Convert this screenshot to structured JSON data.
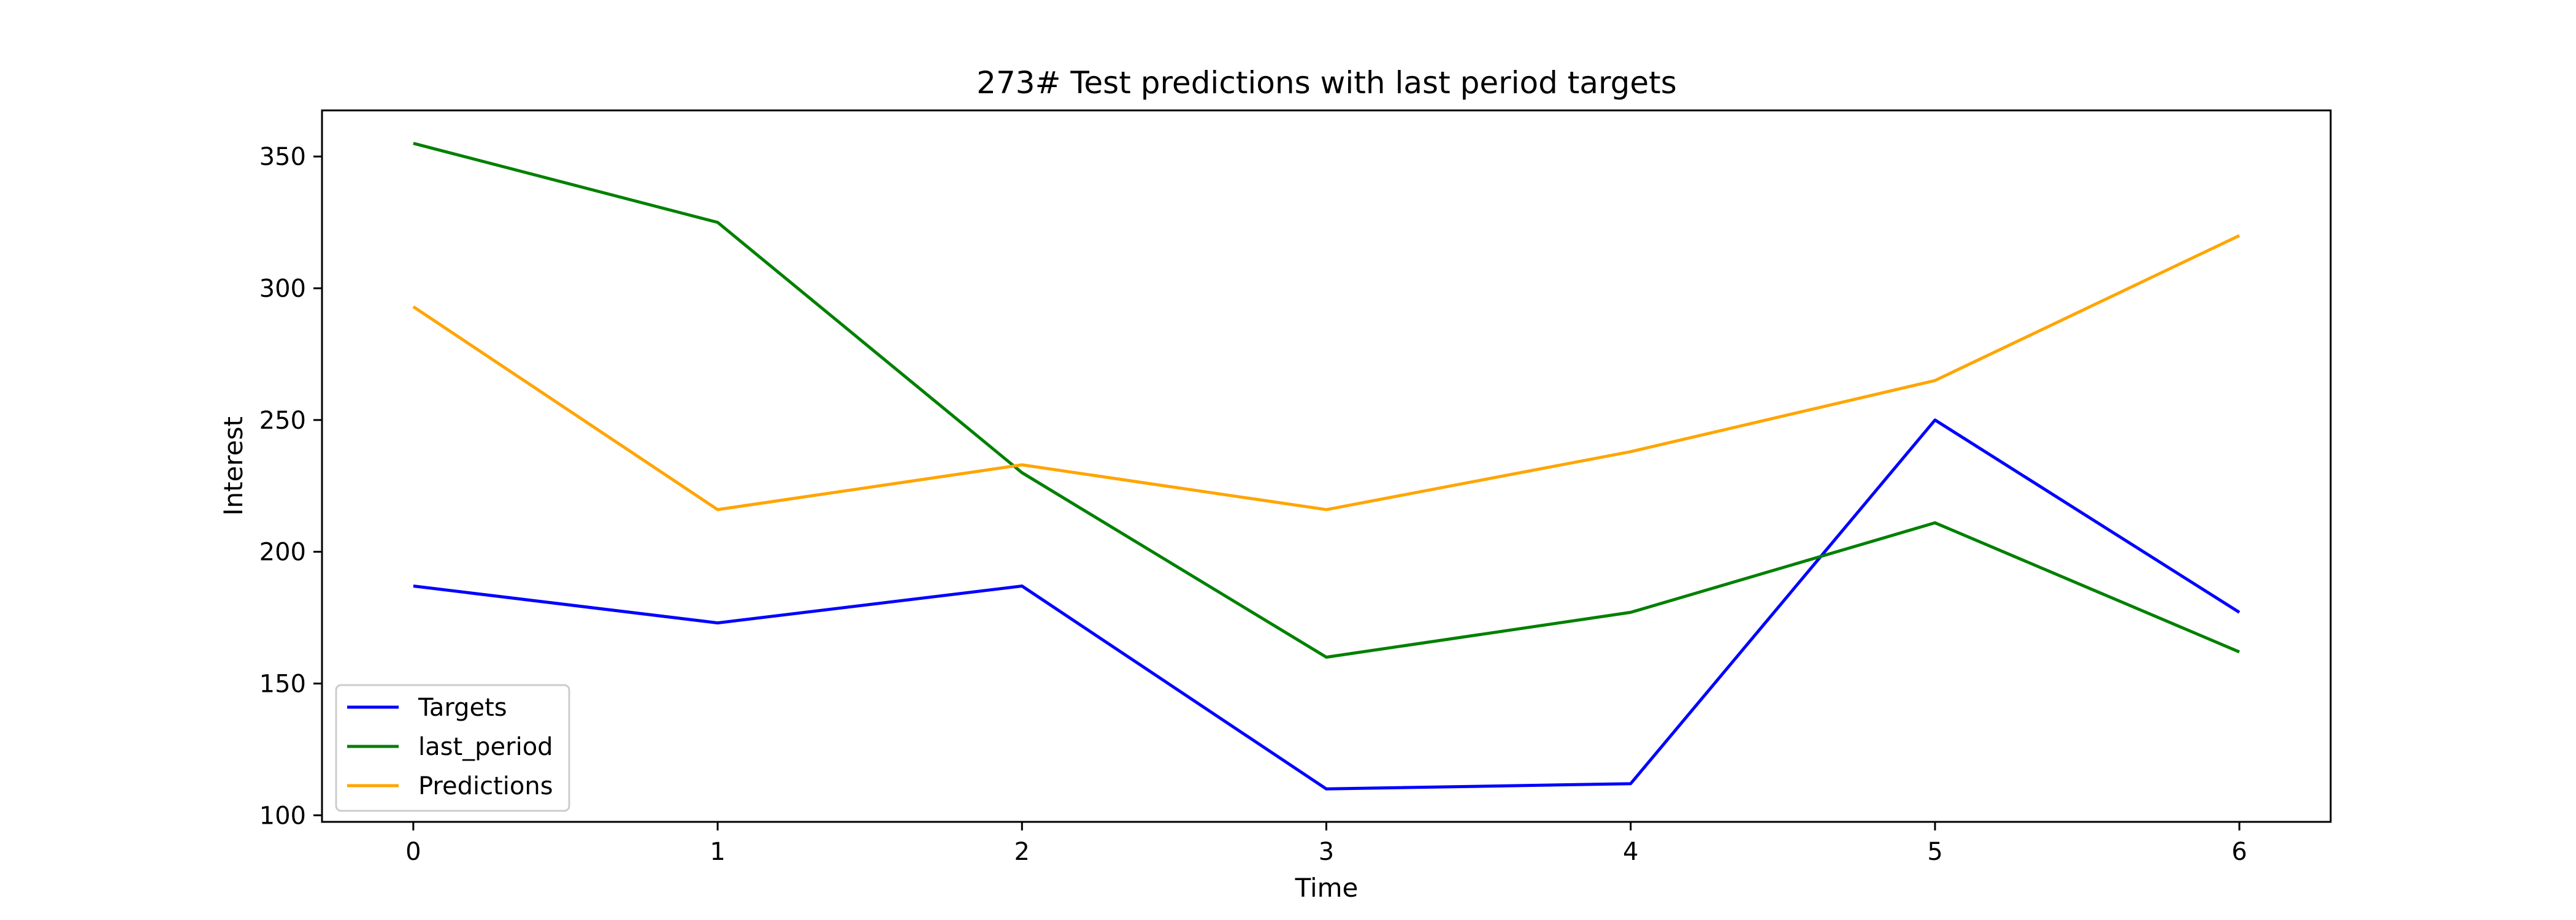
{
  "chart_data": {
    "type": "line",
    "title": "273# Test predictions with last period targets",
    "xlabel": "Time",
    "ylabel": "Interest",
    "x": [
      0,
      1,
      2,
      3,
      4,
      5,
      6
    ],
    "xticks": [
      "0",
      "1",
      "2",
      "3",
      "4",
      "5",
      "6"
    ],
    "yticks": [
      "100",
      "150",
      "200",
      "250",
      "300",
      "350"
    ],
    "xlim": [
      -0.3,
      6.3
    ],
    "ylim": [
      97.5,
      367.5
    ],
    "grid": false,
    "legend_position": "lower-left",
    "series": [
      {
        "name": "Targets",
        "color": "#0000ff",
        "values": [
          187,
          173,
          187,
          110,
          112,
          250,
          177
        ]
      },
      {
        "name": "last_period",
        "color": "#008000",
        "values": [
          355,
          325,
          230,
          160,
          177,
          211,
          162
        ]
      },
      {
        "name": "Predictions",
        "color": "#ffa500",
        "values": [
          293,
          216,
          233,
          216,
          238,
          265,
          320
        ]
      }
    ]
  }
}
